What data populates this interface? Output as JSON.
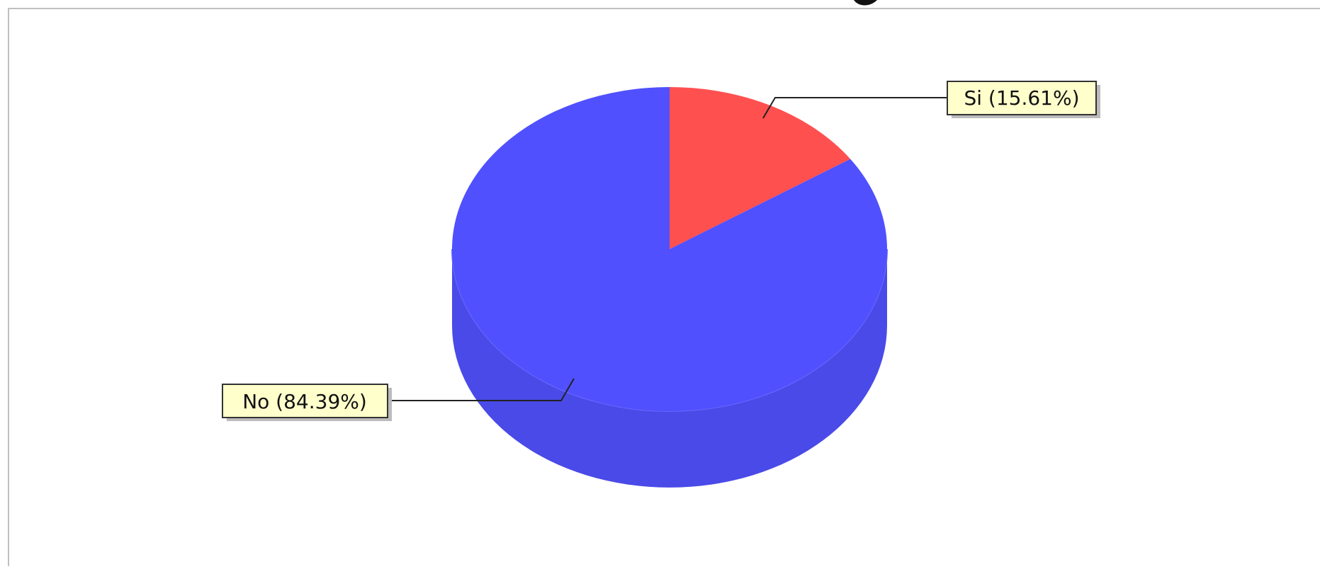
{
  "chart_data": {
    "type": "pie",
    "style": "3d",
    "slices": [
      {
        "label": "Si",
        "value": 15.61,
        "display": "Si (15.61%)",
        "color": "#ff5050"
      },
      {
        "label": "No",
        "value": 84.39,
        "display": "No (84.39%)",
        "color": "#5050ff"
      }
    ],
    "side_colors": {
      "Si": "#e04646",
      "No": "#4a4ae8"
    },
    "label_box_color": "#ffffcc",
    "start_angle_deg": 90,
    "direction": "clockwise"
  }
}
